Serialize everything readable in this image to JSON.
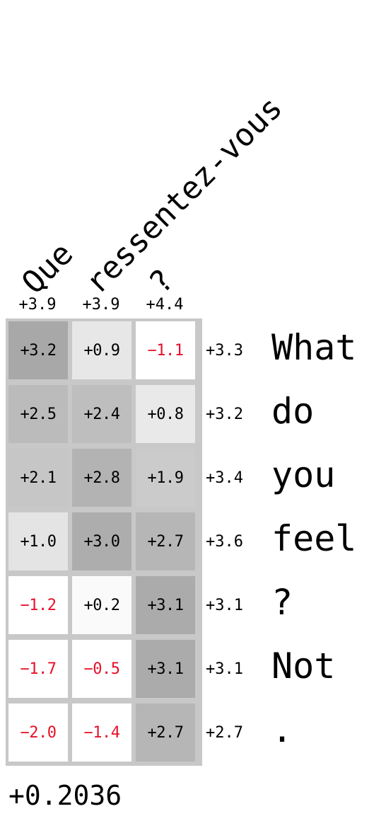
{
  "chart_data": {
    "type": "heatmap",
    "columns": [
      "Que",
      "ressentez-vous",
      "?"
    ],
    "rows": [
      "What",
      "do",
      "you",
      "feel",
      "?",
      "Not",
      "."
    ],
    "values": [
      [
        3.2,
        0.9,
        -1.1
      ],
      [
        2.5,
        2.4,
        0.8
      ],
      [
        2.1,
        2.8,
        1.9
      ],
      [
        1.0,
        3.0,
        2.7
      ],
      [
        -1.2,
        0.2,
        3.1
      ],
      [
        -1.7,
        -0.5,
        3.1
      ],
      [
        -2.0,
        -1.4,
        2.7
      ]
    ],
    "value_labels": [
      [
        "+3.2",
        "+0.9",
        "−1.1"
      ],
      [
        "+2.5",
        "+2.4",
        "+0.8"
      ],
      [
        "+2.1",
        "+2.8",
        "+1.9"
      ],
      [
        "+1.0",
        "+3.0",
        "+2.7"
      ],
      [
        "−1.2",
        "+0.2",
        "+3.1"
      ],
      [
        "−1.7",
        "−0.5",
        "+3.1"
      ],
      [
        "−2.0",
        "−1.4",
        "+2.7"
      ]
    ],
    "column_totals": [
      "+3.9",
      "+3.9",
      "+4.4"
    ],
    "row_totals": [
      "+3.3",
      "+3.2",
      "+3.4",
      "+3.6",
      "+3.1",
      "+3.1",
      "+2.7"
    ],
    "overall_score": "+0.2036",
    "color_scale": {
      "low": "#ffffff",
      "high": "#a8a8a8",
      "negative_text": "#e8102a",
      "positive_text": "#000000"
    }
  }
}
